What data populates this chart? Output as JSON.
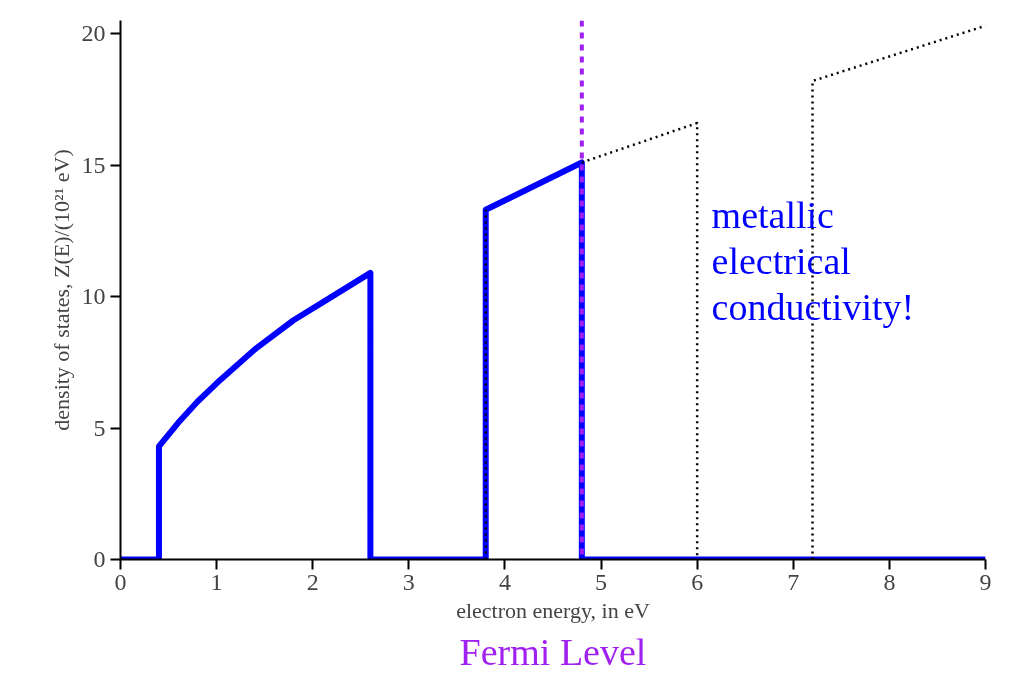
{
  "chart_data": {
    "type": "line",
    "xlabel": "electron energy, in eV",
    "ylabel": "density of states, Z(E)/(10²¹ eV)",
    "xlim": [
      0,
      9
    ],
    "ylim": [
      0,
      20.5
    ],
    "xticks": [
      0,
      1,
      2,
      3,
      4,
      5,
      6,
      7,
      8,
      9
    ],
    "yticks": [
      0,
      5,
      10,
      15,
      20
    ],
    "marker": "none",
    "series": [
      {
        "color": "#0000ff",
        "line_style": "solid",
        "x": [
          0,
          0.4,
          0.4,
          0.6,
          0.8,
          1.0,
          1.4,
          1.8,
          2.2,
          2.6,
          2.6,
          3.8,
          3.8,
          4.8,
          4.8,
          9
        ],
        "values": [
          0,
          0,
          4.3,
          5.2,
          6.0,
          6.7,
          8.0,
          9.1,
          10.0,
          10.9,
          0,
          0,
          13.3,
          15.1,
          0,
          0
        ]
      },
      {
        "color": "#000000",
        "line_style": "dotted",
        "x": [
          3.8,
          3.8,
          4.3,
          4.8,
          6,
          6,
          6.6,
          7.2,
          7.2,
          9
        ],
        "values": [
          0,
          13.3,
          null,
          15.1,
          16.6,
          0,
          null,
          0,
          18.2,
          20.3
        ]
      }
    ],
    "ref_lines": [
      {
        "axis": "x",
        "value": 4.8,
        "label": "Fermi Level",
        "color": "#a020f0",
        "line_style": "dashed"
      }
    ],
    "annotations": [
      "metallic\nelectrical\nconductivity!"
    ]
  }
}
